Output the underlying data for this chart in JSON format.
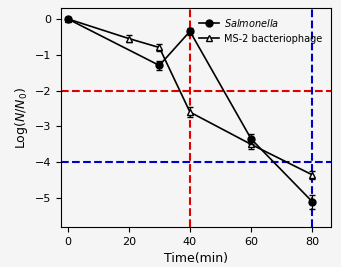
{
  "salmonella_x": [
    0,
    30,
    40,
    60,
    80
  ],
  "salmonella_y": [
    0,
    -1.3,
    -0.35,
    -3.35,
    -5.1
  ],
  "salmonella_yerr": [
    0.05,
    0.12,
    0.1,
    0.15,
    0.2
  ],
  "ms2_x": [
    0,
    20,
    30,
    40,
    60,
    80
  ],
  "ms2_y": [
    0,
    -0.55,
    -0.8,
    -2.6,
    -3.5,
    -4.35
  ],
  "ms2_yerr": [
    0.05,
    0.1,
    0.1,
    0.15,
    0.12,
    0.12
  ],
  "red_hline": -2,
  "red_vline": 40,
  "blue_hline": -4,
  "blue_vline": 80,
  "xlabel": "Time(min)",
  "ylabel": "Log(N/N",
  "xlim": [
    -2,
    86
  ],
  "ylim": [
    -5.8,
    0.3
  ],
  "xticks": [
    0,
    20,
    40,
    60,
    80
  ],
  "yticks": [
    0,
    -1,
    -2,
    -3,
    -4,
    -5
  ],
  "legend_salmonella": "Salmonella",
  "legend_ms2": "MS-2 bacteriophage",
  "line_color": "black",
  "dashed_red": "#e00000",
  "dashed_blue": "#0000cc",
  "bg_color": "#f5f5f5"
}
